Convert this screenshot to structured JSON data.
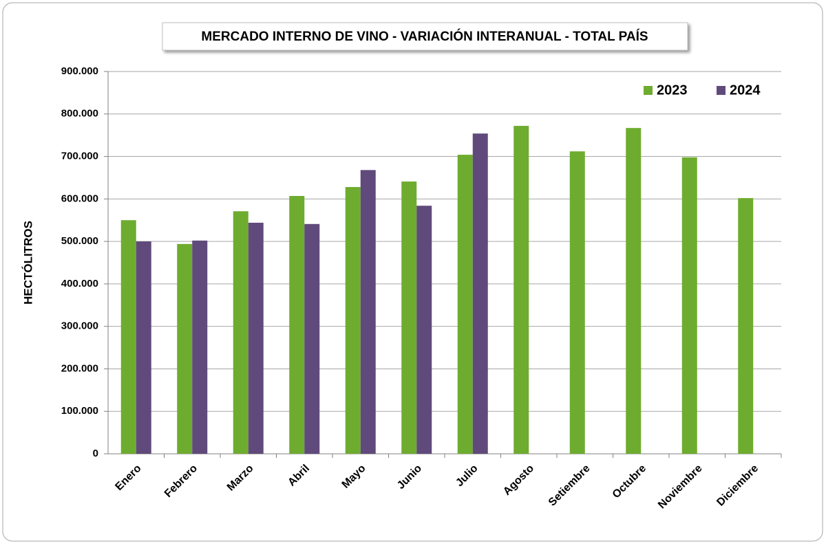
{
  "chart_data": {
    "type": "bar",
    "title": "MERCADO INTERNO DE VINO - VARIACIÓN INTERANUAL - TOTAL PAÍS",
    "y_label": "HECTÓLITROS",
    "categories": [
      "Enero",
      "Febrero",
      "Marzo",
      "Abril",
      "Mayo",
      "Junio",
      "Julio",
      "Agosto",
      "Setiembre",
      "Octubre",
      "Noviembre",
      "Diciembre"
    ],
    "series": [
      {
        "name": "2023",
        "color": "#6eac2f",
        "values": [
          550000,
          494000,
          571000,
          607000,
          628000,
          641000,
          704000,
          772000,
          712000,
          767000,
          698000,
          602000
        ]
      },
      {
        "name": "2024",
        "color": "#604a7b",
        "values": [
          500000,
          502000,
          544000,
          541000,
          668000,
          584000,
          754000,
          null,
          null,
          null,
          null,
          null
        ]
      }
    ],
    "ylim": [
      0,
      900000
    ],
    "yticks": [
      0,
      {
        "value": 100000,
        "label": "100.000"
      },
      {
        "value": 200000,
        "label": "200.000"
      },
      {
        "value": 300000,
        "label": "300.000"
      },
      {
        "value": 400000,
        "label": "400.000"
      },
      {
        "value": 500000,
        "label": "500.000"
      },
      {
        "value": 600000,
        "label": "600.000"
      },
      {
        "value": 700000,
        "label": "700.000"
      },
      {
        "value": 800000,
        "label": "800.000"
      },
      {
        "value": 900000,
        "label": "900.000"
      }
    ],
    "grid": true,
    "legend": "top-right"
  }
}
